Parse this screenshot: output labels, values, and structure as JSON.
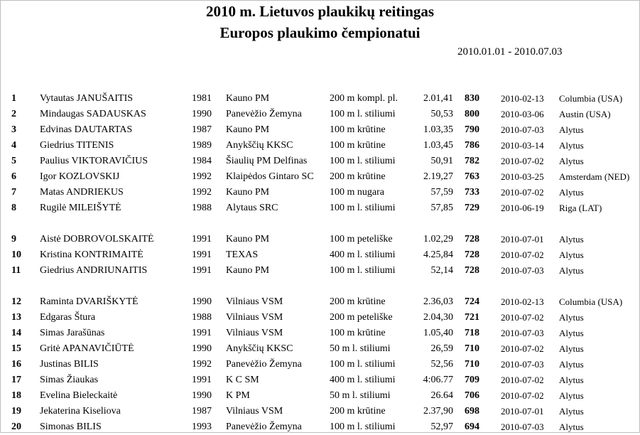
{
  "header": {
    "title": "2010 m. Lietuvos plaukikų reitingas",
    "subtitle": "Europos plaukimo čempionatui",
    "period": "2010.01.01 - 2010.07.03"
  },
  "rows": [
    {
      "rank": "1",
      "name": "Vytautas JANUŠAITIS",
      "year": "1981",
      "club": "Kauno PM",
      "event": "200 m kompl. pl.",
      "time": "2.01,41",
      "points": "830",
      "date": "2010-02-13",
      "place": "Columbia (USA)"
    },
    {
      "rank": "2",
      "name": "Mindaugas SADAUSKAS",
      "year": "1990",
      "club": "Panevėžio Žemyna",
      "event": "100 m l. stiliumi",
      "time": "50,53",
      "points": "800",
      "date": "2010-03-06",
      "place": "Austin (USA)"
    },
    {
      "rank": "3",
      "name": "Edvinas DAUTARTAS",
      "year": "1987",
      "club": "Kauno PM",
      "event": "100 m krūtine",
      "time": "1.03,35",
      "points": "790",
      "date": "2010-07-03",
      "place": "Alytus"
    },
    {
      "rank": "4",
      "name": "Giedrius TITENIS",
      "year": "1989",
      "club": "Anykščių KKSC",
      "event": "100 m krūtine",
      "time": "1.03,45",
      "points": "786",
      "date": "2010-03-14",
      "place": "Alytus"
    },
    {
      "rank": "5",
      "name": "Paulius VIKTORAVIČIUS",
      "year": "1984",
      "club": "Šiaulių PM Delfinas",
      "event": "100 m l. stiliumi",
      "time": "50,91",
      "points": "782",
      "date": "2010-07-02",
      "place": "Alytus"
    },
    {
      "rank": "6",
      "name": "Igor KOZLOVSKIJ",
      "year": "1992",
      "club": "Klaipėdos Gintaro SC",
      "event": "200 m krūtine",
      "time": "2.19,27",
      "points": "763",
      "date": "2010-03-25",
      "place": "Amsterdam (NED)"
    },
    {
      "rank": "7",
      "name": "Matas ANDRIEKUS",
      "year": "1992",
      "club": "Kauno PM",
      "event": "100 m nugara",
      "time": "57,59",
      "points": "733",
      "date": "2010-07-02",
      "place": "Alytus"
    },
    {
      "rank": "8",
      "name": "Rugilė MILEIŠYTĖ",
      "year": "1988",
      "club": "Alytaus SRC",
      "event": "100 m l. stiliumi",
      "time": "57,85",
      "points": "729",
      "date": "2010-06-19",
      "place": "Riga (LAT)"
    },
    {
      "rank": "9",
      "name": "Aistė DOBROVOLSKAITĖ",
      "year": "1991",
      "club": "Kauno PM",
      "event": "100 m peteliške",
      "time": "1.02,29",
      "points": "728",
      "date": "2010-07-01",
      "place": "Alytus"
    },
    {
      "rank": "10",
      "name": "Kristina KONTRIMAITĖ",
      "year": "1991",
      "club": "TEXAS",
      "event": "400 m l. stiliumi",
      "time": "4.25,84",
      "points": "728",
      "date": "2010-07-02",
      "place": "Alytus"
    },
    {
      "rank": "11",
      "name": "Giedrius ANDRIUNAITIS",
      "year": "1991",
      "club": "Kauno PM",
      "event": "100 m l. stiliumi",
      "time": "52,14",
      "points": "728",
      "date": "2010-07-03",
      "place": "Alytus"
    },
    {
      "rank": "12",
      "name": "Raminta DVARIŠKYTĖ",
      "year": "1990",
      "club": "Vilniaus VSM",
      "event": "200 m krūtine",
      "time": "2.36,03",
      "points": "724",
      "date": "2010-02-13",
      "place": "Columbia (USA)"
    },
    {
      "rank": "13",
      "name": "Edgaras Štura",
      "year": "1988",
      "club": "Vilniaus VSM",
      "event": "200 m peteliške",
      "time": "2.04,30",
      "points": "721",
      "date": "2010-07-02",
      "place": "Alytus"
    },
    {
      "rank": "14",
      "name": "Simas Jarašūnas",
      "year": "1991",
      "club": "Vilniaus VSM",
      "event": "100 m krūtine",
      "time": "1.05,40",
      "points": "718",
      "date": "2010-07-03",
      "place": "Alytus"
    },
    {
      "rank": "15",
      "name": "Gritė APANAVIČIŪTĖ",
      "year": "1990",
      "club": "Anykščių KKSC",
      "event": "50 m l. stiliumi",
      "time": "26,59",
      "points": "710",
      "date": "2010-07-02",
      "place": "Alytus"
    },
    {
      "rank": "16",
      "name": "Justinas BILIS",
      "year": "1992",
      "club": "Panevėžio Žemyna",
      "event": "100 m l. stiliumi",
      "time": "52,56",
      "points": "710",
      "date": "2010-07-03",
      "place": "Alytus"
    },
    {
      "rank": "17",
      "name": "Simas Žiaukas",
      "year": "1991",
      "club": "K C SM",
      "event": "400 m l. stiliumi",
      "time": "4:06.77",
      "points": "709",
      "date": "2010-07-02",
      "place": "Alytus"
    },
    {
      "rank": "18",
      "name": "Evelina Bieleckaitė",
      "year": "1990",
      "club": "K PM",
      "event": "50 m l. stiliumi",
      "time": "26.64",
      "points": "706",
      "date": "2010-07-02",
      "place": "Alytus"
    },
    {
      "rank": "19",
      "name": "Jekaterina Kiseliova",
      "year": "1987",
      "club": "Vilniaus VSM",
      "event": "200 m krūtine",
      "time": "2.37,90",
      "points": "698",
      "date": "2010-07-01",
      "place": "Alytus"
    },
    {
      "rank": "20",
      "name": "Simonas BILIS",
      "year": "1993",
      "club": "Panevėžio Žemyna",
      "event": "100 m l. stiliumi",
      "time": "52,97",
      "points": "694",
      "date": "2010-07-03",
      "place": "Alytus"
    }
  ]
}
